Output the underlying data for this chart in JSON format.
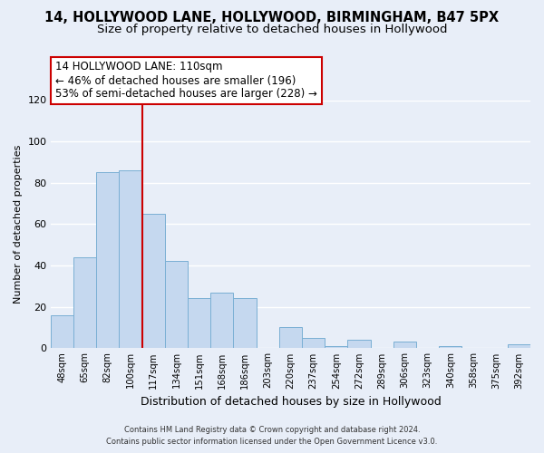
{
  "title1": "14, HOLLYWOOD LANE, HOLLYWOOD, BIRMINGHAM, B47 5PX",
  "title2": "Size of property relative to detached houses in Hollywood",
  "xlabel": "Distribution of detached houses by size in Hollywood",
  "ylabel": "Number of detached properties",
  "bar_labels": [
    "48sqm",
    "65sqm",
    "82sqm",
    "100sqm",
    "117sqm",
    "134sqm",
    "151sqm",
    "168sqm",
    "186sqm",
    "203sqm",
    "220sqm",
    "237sqm",
    "254sqm",
    "272sqm",
    "289sqm",
    "306sqm",
    "323sqm",
    "340sqm",
    "358sqm",
    "375sqm",
    "392sqm"
  ],
  "bar_values": [
    16,
    44,
    85,
    86,
    65,
    42,
    24,
    27,
    24,
    0,
    10,
    5,
    1,
    4,
    0,
    3,
    0,
    1,
    0,
    0,
    2
  ],
  "bar_color": "#c5d8ef",
  "bar_edge_color": "#7aafd4",
  "vline_color": "#cc0000",
  "annotation_title": "14 HOLLYWOOD LANE: 110sqm",
  "annotation_line1": "← 46% of detached houses are smaller (196)",
  "annotation_line2": "53% of semi-detached houses are larger (228) →",
  "annotation_box_facecolor": "#ffffff",
  "annotation_box_edgecolor": "#cc0000",
  "ylim": [
    0,
    120
  ],
  "yticks": [
    0,
    20,
    40,
    60,
    80,
    100,
    120
  ],
  "footer1": "Contains HM Land Registry data © Crown copyright and database right 2024.",
  "footer2": "Contains public sector information licensed under the Open Government Licence v3.0.",
  "background_color": "#e8eef8",
  "grid_color": "#ffffff",
  "title1_fontsize": 10.5,
  "title2_fontsize": 9.5,
  "vline_x_index": 4,
  "annotation_fontsize": 8.5,
  "ylabel_fontsize": 8,
  "xlabel_fontsize": 9
}
